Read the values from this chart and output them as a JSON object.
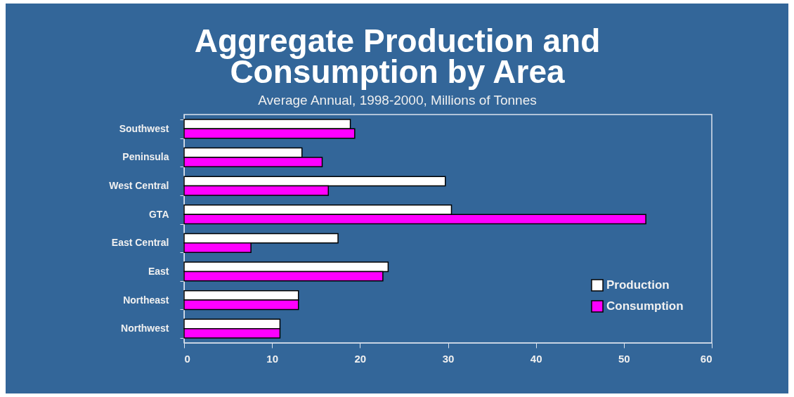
{
  "chart_data": {
    "type": "bar",
    "orientation": "horizontal",
    "title": "Aggregate Production and Consumption by Area",
    "subtitle": "Average Annual, 1998-2000, Millions of Tonnes",
    "categories": [
      "Southwest",
      "Peninsula",
      "West Central",
      "GTA",
      "East Central",
      "East",
      "Northeast",
      "Northwest"
    ],
    "series": [
      {
        "name": "Production",
        "color": "#ffffff",
        "values": [
          18.9,
          13.4,
          29.7,
          30.4,
          17.5,
          23.2,
          13.0,
          10.9
        ]
      },
      {
        "name": "Consumption",
        "color": "#ff00ff",
        "values": [
          19.4,
          15.7,
          16.4,
          52.5,
          7.6,
          22.6,
          13.0,
          10.9
        ]
      }
    ],
    "xlim": [
      0,
      60
    ],
    "xticks": [
      0,
      10,
      20,
      30,
      40,
      50,
      60
    ],
    "grid": false,
    "legend": "bottom right"
  }
}
